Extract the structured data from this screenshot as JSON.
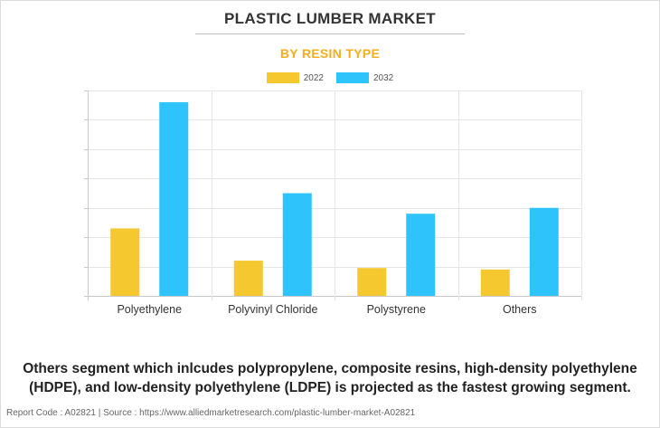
{
  "title": "PLASTIC LUMBER MARKET",
  "subtitle": "BY RESIN TYPE",
  "colors": {
    "series_2022": "#f4c82e",
    "series_2032": "#2ec4fb",
    "subtitle": "#f4ae1d"
  },
  "chart_data": {
    "type": "bar",
    "title": "PLASTIC LUMBER MARKET",
    "subtitle": "BY RESIN TYPE",
    "categories": [
      "Polyethylene",
      "Polyvinyl Chloride",
      "Polystyrene",
      "Others"
    ],
    "series": [
      {
        "name": "2022",
        "values": [
          2.3,
          1.2,
          0.95,
          0.9
        ]
      },
      {
        "name": "2032",
        "values": [
          6.6,
          3.5,
          2.8,
          3.0
        ]
      }
    ],
    "ylim": [
      0,
      7
    ],
    "grid": true,
    "legend": "top-center",
    "ytick_count": 7
  },
  "note": "Others segment which inlcudes polypropylene, composite resins, high-density polyethylene (HDPE), and low-density polyethylene (LDPE) is projected as the fastest growing segment.",
  "footer": "Report Code : A02821  |  Source : https://www.alliedmarketresearch.com/plastic-lumber-market-A02821"
}
